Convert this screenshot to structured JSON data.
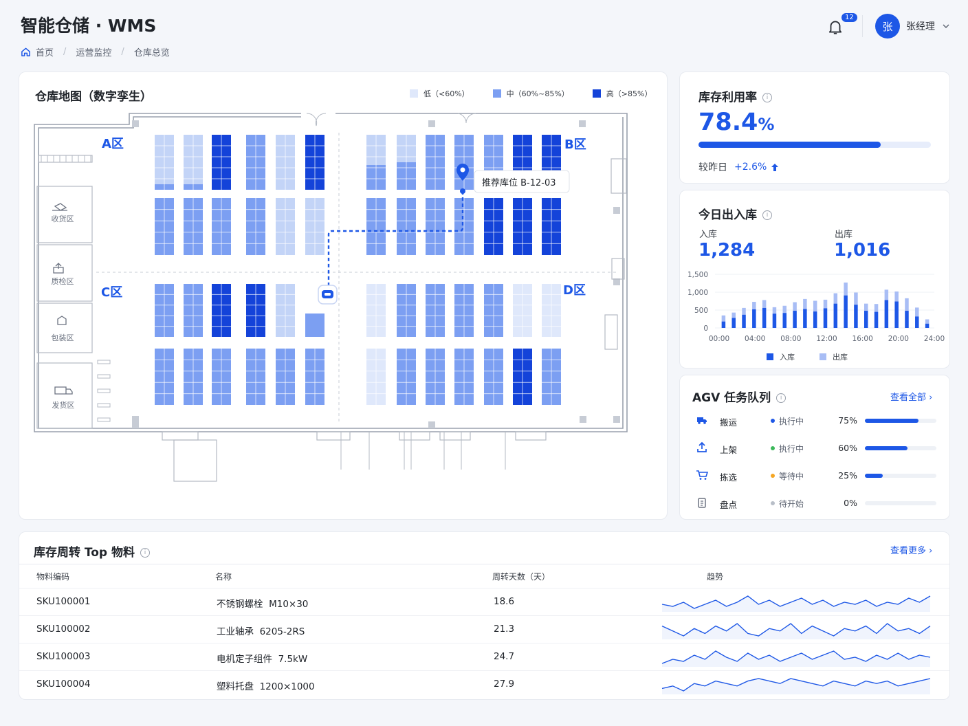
{
  "header": {
    "title": "智能仓储 · WMS",
    "notifications": "12",
    "avatar": "张",
    "user": "张经理"
  },
  "breadcrumb": [
    "首页",
    "运营监控",
    "仓库总览"
  ],
  "map": {
    "title": "仓库地图（数字孪生）",
    "legend": [
      {
        "label": "低（<60%）",
        "color": "#dfe8fb"
      },
      {
        "label": "中（60%~85%）",
        "color": "#7c9ff2"
      },
      {
        "label": "高（>85%）",
        "color": "#1443d9"
      }
    ],
    "zones": [
      "A区",
      "B区",
      "C区",
      "D区"
    ],
    "side_rooms": [
      "收货区",
      "质检区",
      "包装区",
      "发货区"
    ],
    "tooltip": "推荐库位 B-12-03"
  },
  "utilization": {
    "title": "库存利用率",
    "value": "78.4",
    "unit": "%",
    "progress": 78.4,
    "compare_label": "较昨日",
    "compare_value": "+2.6%"
  },
  "inout": {
    "title": "今日出入库",
    "in_label": "入库",
    "in_value": "1,284",
    "out_label": "出库",
    "out_value": "1,016",
    "chart_data": {
      "type": "bar",
      "y_ticks": [
        "1,500",
        "1,000",
        "500",
        "0"
      ],
      "ylim": [
        0,
        1500
      ],
      "x_ticks": [
        "00:00",
        "04:00",
        "08:00",
        "12:00",
        "16:00",
        "20:00",
        "24:00"
      ],
      "series": [
        {
          "name": "入库",
          "color": "#1d57e6",
          "values": [
            180,
            280,
            370,
            520,
            560,
            400,
            420,
            480,
            530,
            460,
            550,
            680,
            910,
            650,
            480,
            450,
            780,
            740,
            480,
            320,
            120
          ]
        },
        {
          "name": "出库",
          "color": "#a8bdf5",
          "values": [
            170,
            150,
            190,
            210,
            220,
            180,
            200,
            240,
            280,
            300,
            240,
            290,
            360,
            340,
            200,
            220,
            290,
            280,
            350,
            250,
            120
          ]
        }
      ]
    }
  },
  "agv": {
    "title": "AGV 任务队列",
    "view_all": "查看全部 ›",
    "tasks": [
      {
        "name": "搬运",
        "status": "执行中",
        "status_color": "#1d57e6",
        "pct": "75%",
        "progress": 75
      },
      {
        "name": "上架",
        "status": "执行中",
        "status_color": "#3bb85a",
        "pct": "60%",
        "progress": 60
      },
      {
        "name": "拣选",
        "status": "等待中",
        "status_color": "#f5a623",
        "pct": "25%",
        "progress": 25
      },
      {
        "name": "盘点",
        "status": "待开始",
        "status_color": "#b8bec8",
        "pct": "0%",
        "progress": 0
      }
    ]
  },
  "turnover": {
    "title": "库存周转 Top 物料",
    "view_more": "查看更多 ›",
    "columns": [
      "物料编码",
      "名称",
      "周转天数（天）",
      "趋势"
    ],
    "rows": [
      {
        "code": "SKU100001",
        "name": "不锈钢螺栓  M10×30",
        "days": "18.6",
        "trend": [
          10,
          9,
          11,
          8,
          10,
          12,
          9,
          11,
          14,
          10,
          12,
          9,
          11,
          13,
          10,
          12,
          9,
          11,
          10,
          12,
          9,
          11,
          10,
          13,
          11,
          14
        ]
      },
      {
        "code": "SKU100002",
        "name": "工业轴承  6205-2RS",
        "days": "21.3",
        "trend": [
          12,
          10,
          8,
          11,
          9,
          12,
          10,
          13,
          9,
          8,
          11,
          10,
          13,
          9,
          12,
          10,
          8,
          11,
          10,
          12,
          9,
          13,
          10,
          11,
          9,
          12
        ]
      },
      {
        "code": "SKU100003",
        "name": "电机定子组件  7.5kW",
        "days": "24.7",
        "trend": [
          8,
          10,
          9,
          12,
          10,
          14,
          11,
          9,
          13,
          10,
          12,
          9,
          11,
          13,
          10,
          12,
          14,
          10,
          11,
          9,
          12,
          10,
          13,
          10,
          12,
          11
        ]
      },
      {
        "code": "SKU100004",
        "name": "塑料托盘  1200×1000",
        "days": "27.9",
        "trend": [
          9,
          10,
          8,
          11,
          10,
          12,
          11,
          10,
          12,
          13,
          12,
          11,
          13,
          12,
          11,
          10,
          12,
          11,
          10,
          12,
          11,
          12,
          10,
          11,
          12,
          13
        ]
      }
    ]
  }
}
